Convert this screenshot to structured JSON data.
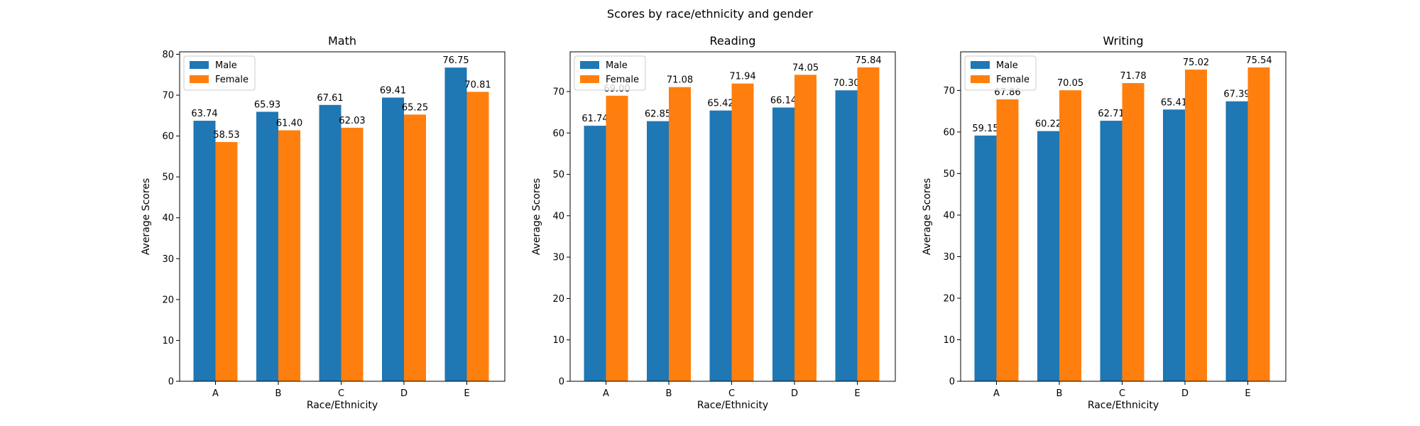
{
  "figure": {
    "suptitle": "Scores by race/ethnicity and gender"
  },
  "colors": {
    "male": "#1f77b4",
    "female": "#ff7f0e"
  },
  "chart_data": [
    {
      "type": "bar",
      "title": "Math",
      "xlabel": "Race/Ethnicity",
      "ylabel": "Average Scores",
      "categories": [
        "A",
        "B",
        "C",
        "D",
        "E"
      ],
      "series": [
        {
          "name": "Male",
          "values": [
            63.74,
            65.93,
            67.61,
            69.41,
            76.75
          ]
        },
        {
          "name": "Female",
          "values": [
            58.53,
            61.4,
            62.03,
            65.25,
            70.81
          ]
        }
      ],
      "value_labels": [
        [
          "63.74",
          "65.93",
          "67.61",
          "69.41",
          "76.75"
        ],
        [
          "58.53",
          "61.40",
          "62.03",
          "65.25",
          "70.81"
        ]
      ],
      "ylim": [
        0,
        80.6
      ],
      "yticks": [
        0,
        10,
        20,
        30,
        40,
        50,
        60,
        70,
        80
      ],
      "legend": "upper-left",
      "grid": false
    },
    {
      "type": "bar",
      "title": "Reading",
      "xlabel": "Race/Ethnicity",
      "ylabel": "Average Scores",
      "categories": [
        "A",
        "B",
        "C",
        "D",
        "E"
      ],
      "series": [
        {
          "name": "Male",
          "values": [
            61.74,
            62.85,
            65.42,
            66.14,
            70.3
          ]
        },
        {
          "name": "Female",
          "values": [
            69.0,
            71.08,
            71.94,
            74.05,
            75.84
          ]
        }
      ],
      "value_labels": [
        [
          "61.74",
          "62.85",
          "65.42",
          "66.14",
          "70.30"
        ],
        [
          "69.00",
          "71.08",
          "71.94",
          "74.05",
          "75.84"
        ]
      ],
      "ylim": [
        0,
        79.6
      ],
      "yticks": [
        0,
        10,
        20,
        30,
        40,
        50,
        60,
        70
      ],
      "legend": "upper-left",
      "grid": false
    },
    {
      "type": "bar",
      "title": "Writing",
      "xlabel": "Race/Ethnicity",
      "ylabel": "Average Scores",
      "categories": [
        "A",
        "B",
        "C",
        "D",
        "E"
      ],
      "series": [
        {
          "name": "Male",
          "values": [
            59.15,
            60.22,
            62.71,
            65.41,
            67.39
          ]
        },
        {
          "name": "Female",
          "values": [
            67.86,
            70.05,
            71.78,
            75.02,
            75.54
          ]
        }
      ],
      "value_labels": [
        [
          "59.15",
          "60.22",
          "62.71",
          "65.41",
          "67.39"
        ],
        [
          "67.86",
          "70.05",
          "71.78",
          "75.02",
          "75.54"
        ]
      ],
      "ylim": [
        0,
        79.3
      ],
      "yticks": [
        0,
        10,
        20,
        30,
        40,
        50,
        60,
        70
      ],
      "legend": "upper-left",
      "grid": false
    }
  ]
}
